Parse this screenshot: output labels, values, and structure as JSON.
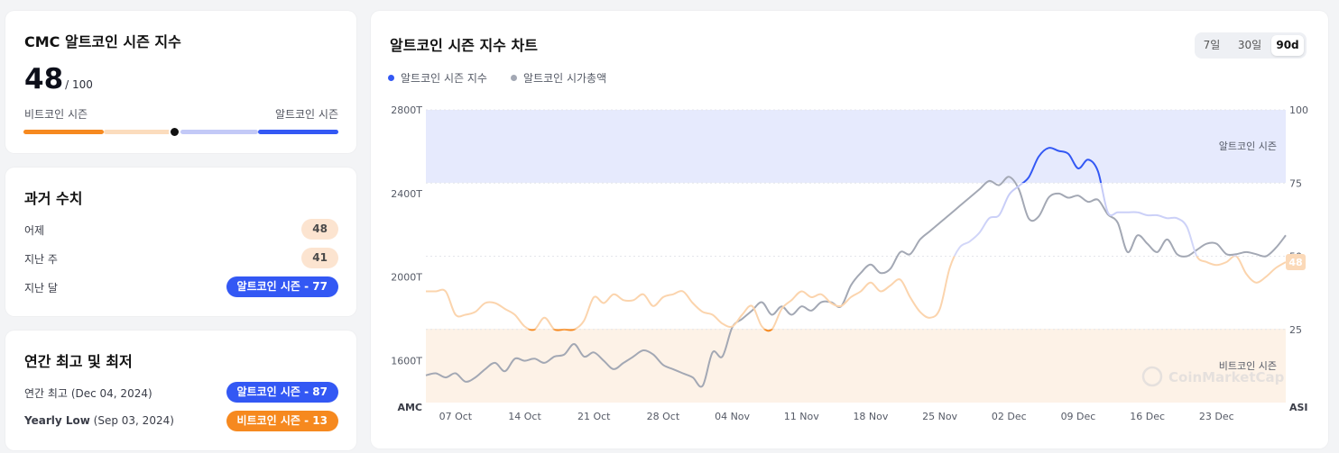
{
  "index_card": {
    "title": "CMC 알트코인 시즌 지수",
    "value": "48",
    "max_label": "/ 100",
    "left_label": "비트코인 시즌",
    "right_label": "알트코인 시즌",
    "level_fraction": 0.48,
    "colors": {
      "bitcoin": "#f6891f",
      "bitcoin_light": "#fbdcbd",
      "alt_light": "#c3c9f7",
      "alt": "#3358f4"
    }
  },
  "history": {
    "title": "과거 수치",
    "rows": [
      {
        "label": "어제",
        "value": "48",
        "style": "peach"
      },
      {
        "label": "지난 주",
        "value": "41",
        "style": "peach"
      },
      {
        "label": "지난 달",
        "value": "알트코인 시즌 - 77",
        "style": "blue"
      }
    ]
  },
  "yearly": {
    "title": "연간 최고 및 최저",
    "rows": [
      {
        "label": "연간 최고",
        "date": "(Dec 04, 2024)",
        "value": "알트코인 시즌 - 87",
        "style": "blue"
      },
      {
        "label": "Yearly Low",
        "date": "(Sep 03, 2024)",
        "value": "비트코인 시즌 - 13",
        "style": "orange"
      }
    ]
  },
  "chart_card": {
    "title": "알트코인 시즌 지수 차트",
    "ranges": [
      "7일",
      "30일",
      "90d"
    ],
    "active_range": "90d",
    "legend": [
      {
        "label": "알트코인 시즌 지수",
        "color": "#3358f4"
      },
      {
        "label": "알트코인 시가총액",
        "color": "#a3a8b4"
      }
    ],
    "zone_labels": {
      "alt": "알트코인 시즌",
      "btc": "비트코인 시즌"
    },
    "left_axis_title": "AMC",
    "right_axis_title": "ASI",
    "current_badge": "48",
    "watermark": "CoinMarketCap"
  },
  "chart_data": {
    "type": "line",
    "x_ticks": [
      "07 Oct",
      "14 Oct",
      "21 Oct",
      "28 Oct",
      "04 Nov",
      "11 Nov",
      "18 Nov",
      "25 Nov",
      "02 Dec",
      "09 Dec",
      "16 Dec",
      "23 Dec"
    ],
    "y_left": {
      "label": "AMC",
      "ticks": [
        "2800T",
        "2400T",
        "2000T",
        "1600T"
      ],
      "values": [
        2800,
        2400,
        2000,
        1600
      ],
      "range": [
        1400,
        2800
      ]
    },
    "y_right": {
      "label": "ASI",
      "ticks": [
        "100",
        "75",
        "50",
        "25"
      ],
      "values": [
        100,
        75,
        50,
        25
      ],
      "range": [
        0,
        100
      ]
    },
    "alt_zone": [
      75,
      100
    ],
    "btc_zone": [
      0,
      25
    ],
    "series": [
      {
        "name": "알트코인 시즌 지수",
        "axis": "right",
        "x": [
          0,
          1,
          2,
          3,
          4,
          5,
          6,
          7,
          8,
          9,
          10,
          11,
          12,
          13,
          14,
          15,
          16,
          17,
          18,
          19,
          20,
          21,
          22,
          23,
          24,
          25,
          26,
          27,
          28,
          29,
          30,
          31,
          32,
          33,
          34,
          35,
          36,
          37,
          38,
          39,
          40,
          41,
          42,
          43,
          44,
          45,
          46,
          47,
          48,
          49,
          50,
          51,
          52,
          53,
          54,
          55,
          56,
          57,
          58,
          59,
          60,
          61,
          62,
          63,
          64,
          65,
          66,
          67,
          68,
          69,
          70,
          71,
          72,
          73,
          74,
          75,
          76,
          77,
          78,
          79,
          80,
          81,
          82,
          83,
          84,
          85,
          86,
          87
        ],
        "y": [
          38,
          38,
          38,
          30,
          30,
          31,
          34,
          34,
          32,
          30,
          26,
          25,
          29,
          25,
          25,
          25,
          28,
          36,
          34,
          37,
          35,
          35,
          37,
          33,
          36,
          37,
          38,
          34,
          31,
          30,
          27,
          26,
          30,
          33,
          26,
          25,
          32,
          35,
          38,
          36,
          37,
          34,
          33,
          36,
          38,
          41,
          38,
          40,
          42,
          36,
          31,
          29,
          32,
          46,
          53,
          55,
          58,
          63,
          64,
          71,
          74,
          77,
          84,
          87,
          86,
          85,
          80,
          83,
          79,
          65,
          65,
          65,
          65,
          64,
          64,
          63,
          63,
          60,
          50,
          48,
          47,
          48,
          50,
          44,
          41,
          43,
          46,
          48
        ],
        "color": "#3358f4"
      },
      {
        "name": "알트코인 시가총액",
        "axis": "left",
        "x": [
          0,
          1,
          2,
          3,
          4,
          5,
          6,
          7,
          8,
          9,
          10,
          11,
          12,
          13,
          14,
          15,
          16,
          17,
          18,
          19,
          20,
          21,
          22,
          23,
          24,
          25,
          26,
          27,
          28,
          29,
          30,
          31,
          32,
          33,
          34,
          35,
          36,
          37,
          38,
          39,
          40,
          41,
          42,
          43,
          44,
          45,
          46,
          47,
          48,
          49,
          50,
          51,
          52,
          53,
          54,
          55,
          56,
          57,
          58,
          59,
          60,
          61,
          62,
          63,
          64,
          65,
          66,
          67,
          68,
          69,
          70,
          71,
          72,
          73,
          74,
          75,
          76,
          77,
          78,
          79,
          80,
          81,
          82,
          83,
          84,
          85,
          86,
          87
        ],
        "y": [
          1530,
          1540,
          1520,
          1540,
          1500,
          1520,
          1560,
          1590,
          1550,
          1610,
          1600,
          1610,
          1590,
          1620,
          1630,
          1680,
          1620,
          1640,
          1600,
          1560,
          1590,
          1620,
          1650,
          1630,
          1580,
          1560,
          1540,
          1520,
          1480,
          1640,
          1620,
          1760,
          1800,
          1840,
          1880,
          1820,
          1860,
          1820,
          1860,
          1840,
          1880,
          1880,
          1860,
          1960,
          2020,
          2060,
          2020,
          2040,
          2120,
          2110,
          2180,
          2220,
          2260,
          2300,
          2340,
          2380,
          2420,
          2460,
          2440,
          2480,
          2420,
          2280,
          2290,
          2380,
          2400,
          2380,
          2390,
          2360,
          2370,
          2300,
          2260,
          2120,
          2200,
          2160,
          2120,
          2180,
          2110,
          2100,
          2130,
          2160,
          2160,
          2110,
          2110,
          2120,
          2110,
          2100,
          2140,
          2200
        ],
        "color": "#a3a8b4"
      }
    ]
  }
}
